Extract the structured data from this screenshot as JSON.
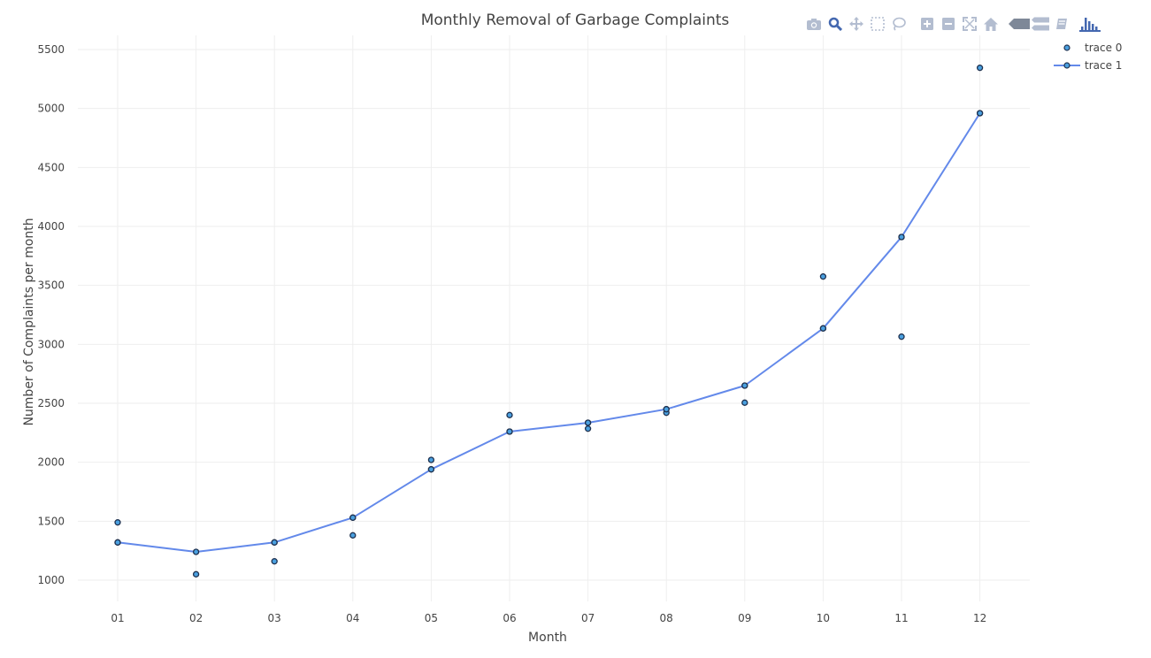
{
  "chart_data": {
    "type": "scatter",
    "title": "Monthly Removal of Garbage Complaints",
    "xlabel": "Month",
    "ylabel": "Number of Complaints per month",
    "categories": [
      "01",
      "02",
      "03",
      "04",
      "05",
      "06",
      "07",
      "08",
      "09",
      "10",
      "11",
      "12"
    ],
    "yticks": [
      1000,
      1500,
      2000,
      2500,
      3000,
      3500,
      4000,
      4500,
      5000,
      5500
    ],
    "ylim": [
      820,
      5620
    ],
    "grid": true,
    "legend_position": "top-right",
    "series": [
      {
        "name": "trace 0",
        "mode": "markers",
        "points": [
          {
            "x": "01",
            "y": 1490
          },
          {
            "x": "01",
            "y": 1320
          },
          {
            "x": "02",
            "y": 1050
          },
          {
            "x": "03",
            "y": 1160
          },
          {
            "x": "03",
            "y": 1320
          },
          {
            "x": "04",
            "y": 1380
          },
          {
            "x": "04",
            "y": 1530
          },
          {
            "x": "05",
            "y": 2020
          },
          {
            "x": "05",
            "y": 1940
          },
          {
            "x": "06",
            "y": 2400
          },
          {
            "x": "06",
            "y": 2260
          },
          {
            "x": "07",
            "y": 2335
          },
          {
            "x": "07",
            "y": 2285
          },
          {
            "x": "08",
            "y": 2420
          },
          {
            "x": "08",
            "y": 2450
          },
          {
            "x": "09",
            "y": 2505
          },
          {
            "x": "09",
            "y": 2650
          },
          {
            "x": "10",
            "y": 3575
          },
          {
            "x": "10",
            "y": 3135
          },
          {
            "x": "11",
            "y": 3065
          },
          {
            "x": "11",
            "y": 3910
          },
          {
            "x": "12",
            "y": 5345
          },
          {
            "x": "12",
            "y": 4960
          }
        ]
      },
      {
        "name": "trace 1",
        "mode": "lines+markers",
        "points": [
          {
            "x": "01",
            "y": 1320
          },
          {
            "x": "02",
            "y": 1240
          },
          {
            "x": "03",
            "y": 1320
          },
          {
            "x": "04",
            "y": 1530
          },
          {
            "x": "05",
            "y": 1940
          },
          {
            "x": "06",
            "y": 2260
          },
          {
            "x": "07",
            "y": 2335
          },
          {
            "x": "08",
            "y": 2450
          },
          {
            "x": "09",
            "y": 2650
          },
          {
            "x": "10",
            "y": 3135
          },
          {
            "x": "11",
            "y": 3910
          },
          {
            "x": "12",
            "y": 4960
          }
        ]
      }
    ],
    "colors": {
      "line": "#6389ea",
      "marker_fill": "#4aa0e0",
      "marker_outline": "#1f3250",
      "grid": "#eeeeee",
      "text": "#444444",
      "modebar_icon": "#b3bdd0",
      "modebar_active": "#4468b0"
    }
  },
  "modebar": {
    "icons": [
      "camera-icon",
      "zoom-icon",
      "pan-icon",
      "box-select-icon",
      "lasso-icon",
      "zoom-in-icon",
      "zoom-out-icon",
      "autoscale-icon",
      "reset-axes-icon",
      "hover-closest-icon",
      "hover-compare-icon",
      "toggle-spikelines-icon",
      "plotly-logo-icon"
    ]
  }
}
